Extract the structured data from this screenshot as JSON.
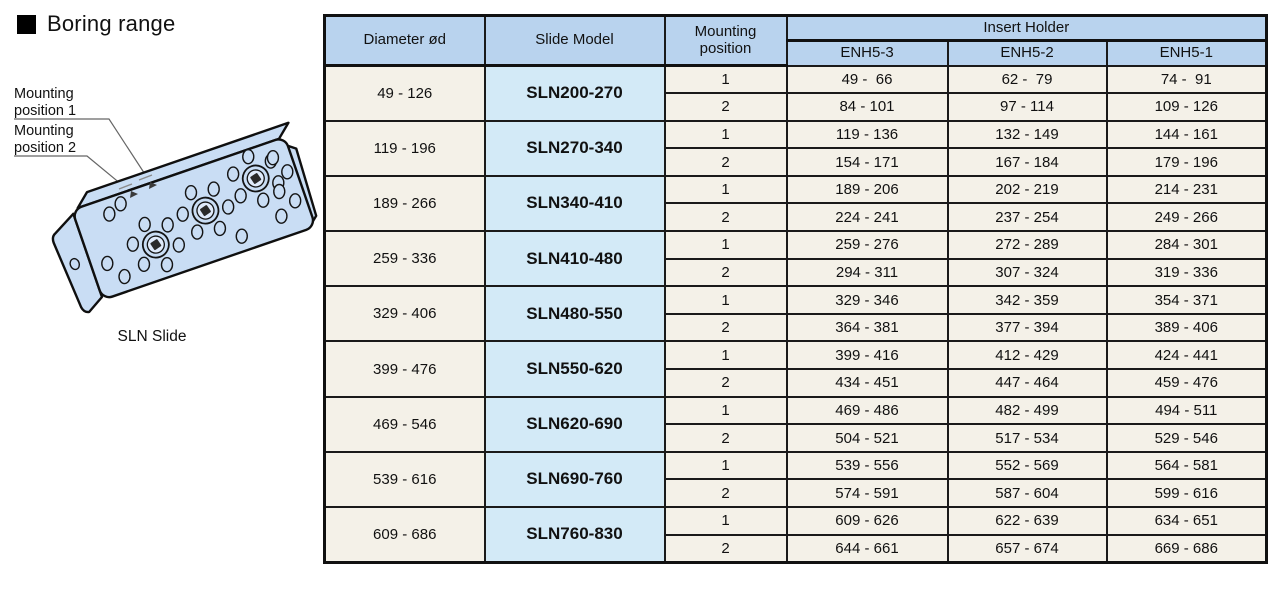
{
  "page": {
    "title": "Boring range"
  },
  "illustration": {
    "caption": "SLN Slide",
    "labels": [
      {
        "lines": [
          "Mounting",
          "position 1"
        ]
      },
      {
        "lines": [
          "Mounting",
          "position 2"
        ]
      }
    ]
  },
  "table": {
    "headers": {
      "diameter": "Diameter ød",
      "slide_model": "Slide Model",
      "mounting_position": "Mounting position",
      "insert_holder": "Insert Holder",
      "insert_columns": [
        "ENH5-3",
        "ENH5-2",
        "ENH5-1"
      ]
    },
    "rows": [
      {
        "diameter": "49 - 126",
        "model": "SLN200-270",
        "positions": [
          {
            "position": "1",
            "ranges": [
              "49 -  66",
              "62 -  79",
              "74 -  91"
            ]
          },
          {
            "position": "2",
            "ranges": [
              "84 - 101",
              "97 - 114",
              "109 - 126"
            ]
          }
        ]
      },
      {
        "diameter": "119 - 196",
        "model": "SLN270-340",
        "positions": [
          {
            "position": "1",
            "ranges": [
              "119 - 136",
              "132 - 149",
              "144 - 161"
            ]
          },
          {
            "position": "2",
            "ranges": [
              "154 - 171",
              "167 - 184",
              "179 - 196"
            ]
          }
        ]
      },
      {
        "diameter": "189 - 266",
        "model": "SLN340-410",
        "positions": [
          {
            "position": "1",
            "ranges": [
              "189 - 206",
              "202 - 219",
              "214 - 231"
            ]
          },
          {
            "position": "2",
            "ranges": [
              "224 - 241",
              "237 - 254",
              "249 - 266"
            ]
          }
        ]
      },
      {
        "diameter": "259 - 336",
        "model": "SLN410-480",
        "positions": [
          {
            "position": "1",
            "ranges": [
              "259 - 276",
              "272 - 289",
              "284 - 301"
            ]
          },
          {
            "position": "2",
            "ranges": [
              "294 - 311",
              "307 - 324",
              "319 - 336"
            ]
          }
        ]
      },
      {
        "diameter": "329 - 406",
        "model": "SLN480-550",
        "positions": [
          {
            "position": "1",
            "ranges": [
              "329 - 346",
              "342 - 359",
              "354 - 371"
            ]
          },
          {
            "position": "2",
            "ranges": [
              "364 - 381",
              "377 - 394",
              "389 - 406"
            ]
          }
        ]
      },
      {
        "diameter": "399 - 476",
        "model": "SLN550-620",
        "positions": [
          {
            "position": "1",
            "ranges": [
              "399 - 416",
              "412 - 429",
              "424 - 441"
            ]
          },
          {
            "position": "2",
            "ranges": [
              "434 - 451",
              "447 - 464",
              "459 - 476"
            ]
          }
        ]
      },
      {
        "diameter": "469 - 546",
        "model": "SLN620-690",
        "positions": [
          {
            "position": "1",
            "ranges": [
              "469 - 486",
              "482 - 499",
              "494 - 511"
            ]
          },
          {
            "position": "2",
            "ranges": [
              "504 - 521",
              "517 - 534",
              "529 - 546"
            ]
          }
        ]
      },
      {
        "diameter": "539 - 616",
        "model": "SLN690-760",
        "positions": [
          {
            "position": "1",
            "ranges": [
              "539 - 556",
              "552 - 569",
              "564 - 581"
            ]
          },
          {
            "position": "2",
            "ranges": [
              "574 - 591",
              "587 - 604",
              "599 - 616"
            ]
          }
        ]
      },
      {
        "diameter": "609 - 686",
        "model": "SLN760-830",
        "positions": [
          {
            "position": "1",
            "ranges": [
              "609 - 626",
              "622 - 639",
              "634 - 651"
            ]
          },
          {
            "position": "2",
            "ranges": [
              "644 - 661",
              "657 - 674",
              "669 - 686"
            ]
          }
        ]
      }
    ]
  },
  "colors": {
    "header_bg": "#b9d3ee",
    "model_bg": "#d3eaf7",
    "cell_bg": "#f4f1e8",
    "slide_fill": "#c9ddf4"
  }
}
